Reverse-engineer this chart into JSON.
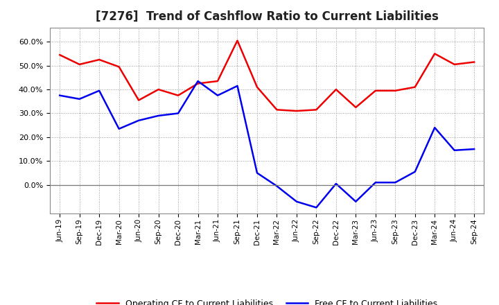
{
  "title": "[7276]  Trend of Cashflow Ratio to Current Liabilities",
  "x_labels": [
    "Jun-19",
    "Sep-19",
    "Dec-19",
    "Mar-20",
    "Jun-20",
    "Sep-20",
    "Dec-20",
    "Mar-21",
    "Jun-21",
    "Sep-21",
    "Dec-21",
    "Mar-22",
    "Jun-22",
    "Sep-22",
    "Dec-22",
    "Mar-23",
    "Jun-23",
    "Sep-23",
    "Dec-23",
    "Mar-24",
    "Jun-24",
    "Sep-24"
  ],
  "operating_cf": [
    0.545,
    0.505,
    0.525,
    0.495,
    0.355,
    0.4,
    0.375,
    0.425,
    0.435,
    0.605,
    0.41,
    0.315,
    0.31,
    0.315,
    0.4,
    0.325,
    0.395,
    0.395,
    0.41,
    0.55,
    0.505,
    0.515
  ],
  "free_cf": [
    0.375,
    0.36,
    0.395,
    0.235,
    0.27,
    0.29,
    0.3,
    0.435,
    0.375,
    0.415,
    0.05,
    -0.005,
    -0.07,
    -0.095,
    0.005,
    -0.07,
    0.01,
    0.01,
    0.055,
    0.24,
    0.145,
    0.15
  ],
  "operating_color": "#ee0000",
  "free_color": "#0000ee",
  "ylim_min": -0.12,
  "ylim_max": 0.66,
  "yticks": [
    0.0,
    0.1,
    0.2,
    0.3,
    0.4,
    0.5,
    0.6
  ],
  "legend_op": "Operating CF to Current Liabilities",
  "legend_free": "Free CF to Current Liabilities",
  "background_color": "#ffffff",
  "plot_bg_color": "#ffffff",
  "grid_color": "#999999",
  "title_fontsize": 12,
  "title_fontweight": "bold"
}
